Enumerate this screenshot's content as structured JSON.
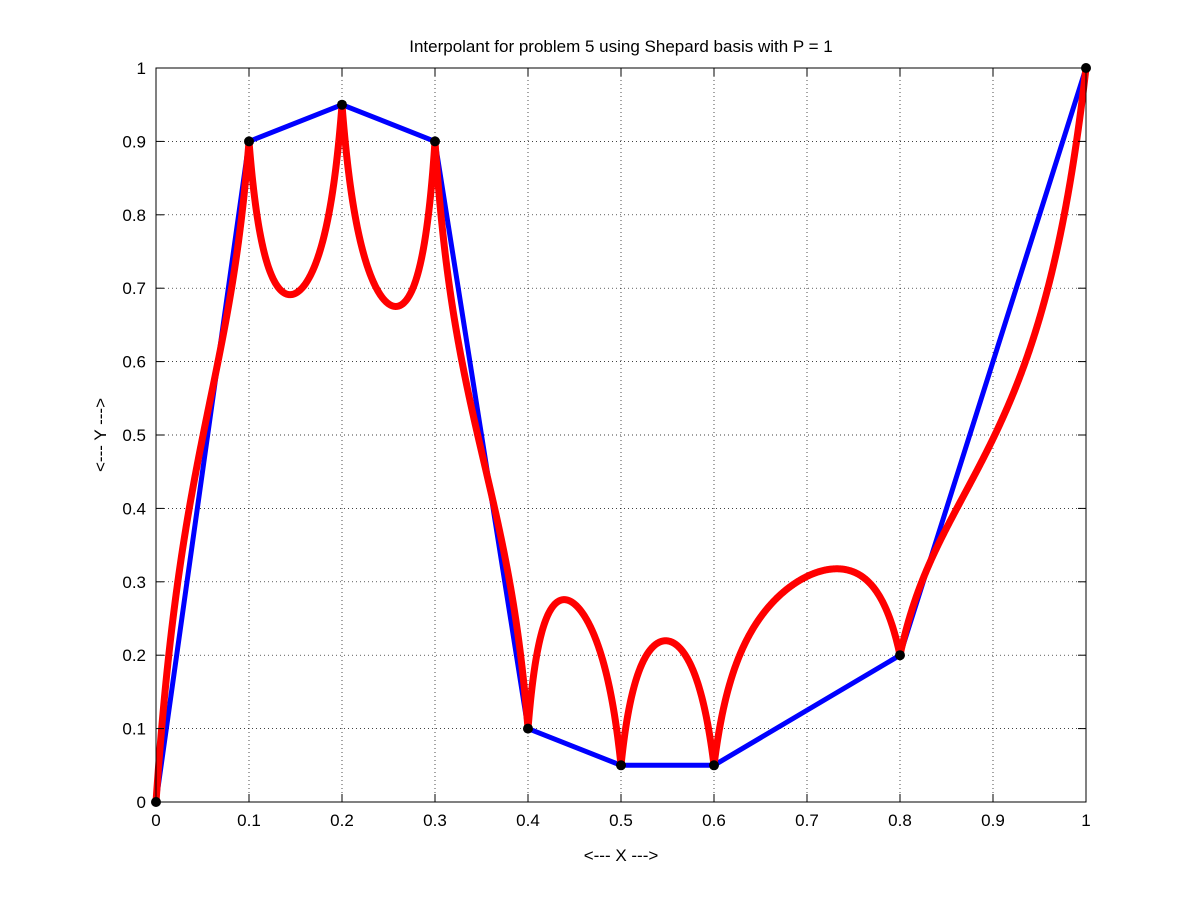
{
  "chart_data": {
    "type": "line",
    "title": "Interpolant for problem 5 using Shepard basis with P = 1",
    "xlabel": "<--- X --->",
    "ylabel": "<--- Y --->",
    "xlim": [
      0,
      1
    ],
    "ylim": [
      0,
      1
    ],
    "grid": true,
    "xticks": [
      "0",
      "0.1",
      "0.2",
      "0.3",
      "0.4",
      "0.5",
      "0.6",
      "0.7",
      "0.8",
      "0.9",
      "1"
    ],
    "yticks": [
      "0",
      "0.1",
      "0.2",
      "0.3",
      "0.4",
      "0.5",
      "0.6",
      "0.7",
      "0.8",
      "0.9",
      "1"
    ],
    "colors": {
      "data_line": "#0000ff",
      "interpolant": "#ff0000",
      "points": "#000000"
    },
    "points": {
      "x": [
        0,
        0.1,
        0.2,
        0.3,
        0.4,
        0.5,
        0.6,
        0.8,
        1
      ],
      "y": [
        0,
        0.9,
        0.95,
        0.9,
        0.1,
        0.05,
        0.05,
        0.2,
        1
      ]
    },
    "interpolant_power": 1
  }
}
